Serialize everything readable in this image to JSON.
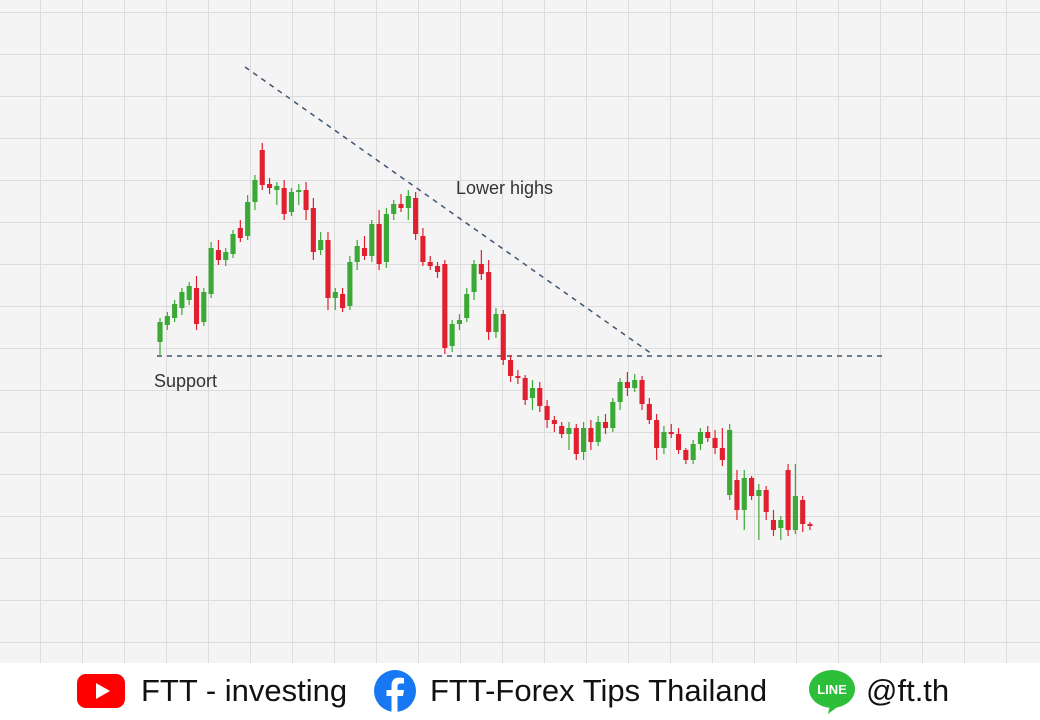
{
  "chart_data": {
    "type": "candlestick",
    "annotations": [
      "Lower highs",
      "Support"
    ],
    "up_color": "#3aa935",
    "down_color": "#e0202e",
    "ylim": [
      0,
      660
    ],
    "open": [
      318,
      335,
      342,
      352,
      360,
      372,
      338,
      366,
      410,
      400,
      406,
      432,
      424,
      458,
      510,
      476,
      470,
      472,
      448,
      468,
      470,
      452,
      410,
      420,
      362,
      366,
      354,
      398,
      412,
      404,
      436,
      398,
      446,
      456,
      452,
      462,
      424,
      398,
      394,
      396,
      314,
      336,
      342,
      368,
      396,
      388,
      328,
      346,
      300,
      284,
      282,
      262,
      272,
      254,
      240,
      234,
      226,
      232,
      208,
      232,
      218,
      238,
      232,
      258,
      278,
      272,
      280,
      256,
      240,
      212,
      228,
      226,
      210,
      200,
      216,
      228,
      222,
      212,
      165,
      180,
      150,
      182,
      164,
      170,
      140,
      132,
      190,
      130,
      160,
      136
    ],
    "high": [
      342,
      348,
      360,
      372,
      378,
      384,
      372,
      418,
      420,
      412,
      430,
      440,
      465,
      485,
      517,
      482,
      478,
      480,
      472,
      476,
      478,
      462,
      428,
      428,
      372,
      372,
      404,
      420,
      424,
      440,
      450,
      452,
      460,
      466,
      470,
      468,
      432,
      404,
      398,
      400,
      340,
      346,
      372,
      400,
      410,
      400,
      352,
      350,
      305,
      290,
      285,
      280,
      278,
      260,
      244,
      238,
      238,
      236,
      238,
      240,
      244,
      246,
      262,
      282,
      288,
      286,
      284,
      262,
      246,
      234,
      236,
      232,
      212,
      220,
      232,
      234,
      230,
      232,
      236,
      190,
      190,
      184,
      176,
      174,
      150,
      144,
      196,
      196,
      164,
      138
    ],
    "low": [
      305,
      330,
      338,
      345,
      355,
      330,
      334,
      362,
      395,
      394,
      402,
      418,
      420,
      450,
      470,
      466,
      455,
      440,
      444,
      455,
      440,
      400,
      405,
      350,
      350,
      348,
      350,
      390,
      400,
      398,
      390,
      392,
      440,
      448,
      440,
      420,
      394,
      390,
      382,
      306,
      308,
      330,
      338,
      360,
      380,
      320,
      322,
      295,
      278,
      276,
      255,
      250,
      248,
      232,
      228,
      222,
      210,
      200,
      200,
      210,
      214,
      226,
      228,
      250,
      264,
      268,
      250,
      236,
      200,
      206,
      222,
      206,
      196,
      196,
      210,
      218,
      206,
      194,
      160,
      140,
      130,
      160,
      120,
      140,
      124,
      120,
      124,
      126,
      128,
      130
    ],
    "close": [
      338,
      344,
      356,
      368,
      374,
      336,
      368,
      412,
      400,
      408,
      426,
      422,
      458,
      480,
      475,
      472,
      474,
      446,
      468,
      470,
      450,
      408,
      420,
      362,
      368,
      352,
      398,
      414,
      404,
      436,
      396,
      446,
      456,
      452,
      464,
      426,
      398,
      394,
      388,
      312,
      336,
      340,
      366,
      396,
      386,
      328,
      346,
      300,
      284,
      282,
      260,
      272,
      254,
      240,
      236,
      226,
      232,
      206,
      232,
      218,
      238,
      232,
      258,
      278,
      272,
      280,
      256,
      240,
      212,
      228,
      226,
      210,
      200,
      216,
      228,
      222,
      212,
      200,
      230,
      150,
      182,
      164,
      170,
      148,
      130,
      140,
      130,
      164,
      136,
      134
    ]
  },
  "footer": {
    "youtube": "FTT - investing",
    "facebook": "FTT-Forex Tips Thailand",
    "line_icon": "LINE",
    "line": "@ft.th"
  }
}
